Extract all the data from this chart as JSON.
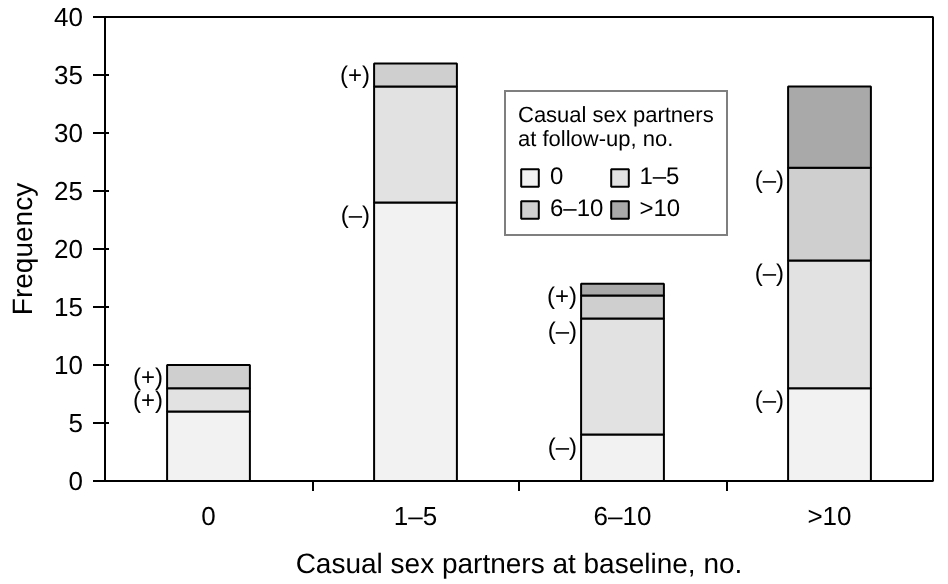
{
  "chart_data": {
    "type": "bar",
    "stacked": true,
    "xlabel": "Casual sex partners at baseline, no.",
    "ylabel": "Frequency",
    "legend_title": "Casual sex partners at follow-up, no.",
    "categories": [
      "0",
      "1–5",
      "6–10",
      ">10"
    ],
    "series": [
      {
        "name": "0",
        "color": "#f2f2f2",
        "values": [
          6,
          24,
          4,
          8
        ]
      },
      {
        "name": "1–5",
        "color": "#e2e2e2",
        "values": [
          2,
          10,
          10,
          11
        ]
      },
      {
        "name": "6–10",
        "color": "#cfcfcf",
        "values": [
          2,
          2,
          2,
          8
        ]
      },
      {
        "name": ">10",
        "color": "#a9a9a9",
        "values": [
          null,
          null,
          1,
          7
        ]
      }
    ],
    "ylim": [
      0,
      40
    ],
    "yticks": [
      0,
      5,
      10,
      15,
      20,
      25,
      30,
      35,
      40
    ],
    "grid": false,
    "legend": "top right",
    "annotations": [
      {
        "text": "(+)",
        "x": "0",
        "y": 10
      },
      {
        "text": "(+)",
        "x": "0",
        "y": 8
      },
      {
        "text": "(+)",
        "x": "1–5",
        "y": 36
      },
      {
        "text": "(–)",
        "x": "1–5",
        "y": 24
      },
      {
        "text": "(+)",
        "x": "6–10",
        "y": 17
      },
      {
        "text": "(–)",
        "x": "6–10",
        "y": 14
      },
      {
        "text": "(–)",
        "x": "6–10",
        "y": 4
      },
      {
        "text": "(–)",
        "x": ">10",
        "y": 27
      },
      {
        "text": "(–)",
        "x": ">10",
        "y": 19
      },
      {
        "text": "(–)",
        "x": ">10",
        "y": 8
      }
    ]
  }
}
